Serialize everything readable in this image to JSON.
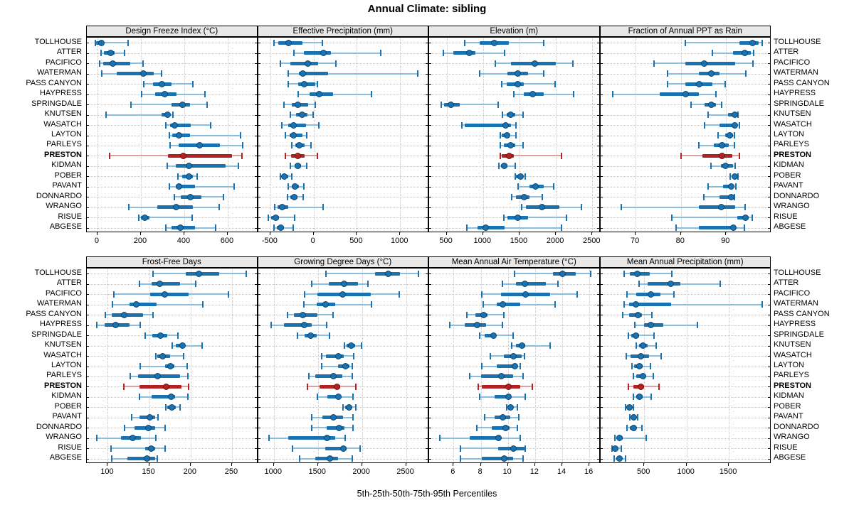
{
  "title": "Annual Climate: sibling",
  "caption": "5th-25th-50th-75th-95th Percentiles",
  "highlight_station": "PRESTON",
  "colors": {
    "series": "#1b72b0",
    "series_light": "#8cbedf",
    "series_dot_edge": "#0d456e",
    "highlight": "#b22222",
    "highlight_light": "#dfa09f",
    "highlight_dot_edge": "#701312",
    "header_bg": "#e8e8e8",
    "grid": "#c6c6c6",
    "border": "#000000"
  },
  "stations": [
    "TOLLHOUSE",
    "ATTER",
    "PACIFICO",
    "WATERMAN",
    "PASS CANYON",
    "HAYPRESS",
    "SPRINGDALE",
    "KNUTSEN",
    "WASATCH",
    "LAYTON",
    "PARLEYS",
    "PRESTON",
    "KIDMAN",
    "POBER",
    "PAVANT",
    "DONNARDO",
    "WRANGO",
    "RISUE",
    "ABGESE"
  ],
  "chart_data": [
    {
      "type": "dotplot_percentiles",
      "title": "Design Freeze Index (°C)",
      "percentile_levels": [
        5,
        25,
        50,
        75,
        95
      ],
      "xlim": [
        -49,
        733
      ],
      "ticks": [
        0,
        200,
        400,
        600
      ],
      "percentiles": {
        "TOLLHOUSE": [
          -10,
          -5,
          15,
          30,
          140
        ],
        "ATTER": [
          15,
          30,
          60,
          80,
          125
        ],
        "PACIFICO": [
          10,
          25,
          70,
          150,
          210
        ],
        "WATERMAN": [
          20,
          90,
          210,
          260,
          295
        ],
        "PASS CANYON": [
          212,
          255,
          295,
          340,
          440
        ],
        "HAYPRESS": [
          205,
          265,
          310,
          365,
          495
        ],
        "SPRINGDALE": [
          155,
          340,
          390,
          425,
          505
        ],
        "KNUTSEN": [
          40,
          295,
          320,
          335,
          348
        ],
        "WASATCH": [
          315,
          335,
          355,
          430,
          520
        ],
        "LAYTON": [
          330,
          345,
          375,
          425,
          660
        ],
        "PARLEYS": [
          335,
          375,
          470,
          565,
          670
        ],
        "PRESTON": [
          55,
          325,
          395,
          620,
          665
        ],
        "KIDMAN": [
          320,
          360,
          420,
          590,
          650
        ],
        "POBER": [
          370,
          390,
          420,
          440,
          460
        ],
        "PAVANT": [
          330,
          360,
          375,
          450,
          630
        ],
        "DONNARDO": [
          355,
          385,
          425,
          480,
          580
        ],
        "WRANGO": [
          145,
          275,
          360,
          440,
          560
        ],
        "RISUE": [
          190,
          200,
          215,
          240,
          435
        ],
        "ABGESE": [
          315,
          340,
          380,
          450,
          545
        ]
      }
    },
    {
      "type": "dotplot_percentiles",
      "title": "Effective Precipitation (mm)",
      "percentile_levels": [
        5,
        25,
        50,
        75,
        95
      ],
      "xlim": [
        -643,
        1319
      ],
      "ticks": [
        -500,
        0,
        500,
        1000
      ],
      "percentiles": {
        "TOLLHOUSE": [
          -460,
          -410,
          -290,
          -130,
          105
        ],
        "ATTER": [
          -230,
          -115,
          110,
          200,
          780
        ],
        "PACIFICO": [
          -380,
          -265,
          -70,
          55,
          255
        ],
        "WATERMAN": [
          -290,
          -170,
          -130,
          170,
          1205
        ],
        "PASS CANYON": [
          -290,
          -175,
          -110,
          20,
          45
        ],
        "HAYPRESS": [
          -175,
          -45,
          57,
          225,
          670
        ],
        "SPRINGDALE": [
          -340,
          -250,
          -183,
          -60,
          16
        ],
        "KNUTSEN": [
          -265,
          -205,
          -136,
          -68,
          -5
        ],
        "WASATCH": [
          -365,
          -290,
          -237,
          -87,
          63
        ],
        "LAYTON": [
          -325,
          -278,
          -237,
          -128,
          -79
        ],
        "PARLEYS": [
          -250,
          -210,
          -169,
          -101,
          -33
        ],
        "PRESTON": [
          -325,
          -260,
          -188,
          -100,
          40
        ],
        "KIDMAN": [
          -265,
          -223,
          -188,
          -142,
          -79
        ],
        "POBER": [
          -380,
          -365,
          -340,
          -290,
          -250
        ],
        "PAVANT": [
          -290,
          -250,
          -223,
          -170,
          -115
        ],
        "DONNARDO": [
          -300,
          -265,
          -229,
          -183,
          -123
        ],
        "WRANGO": [
          -447,
          -414,
          -365,
          -292,
          109
        ],
        "RISUE": [
          -523,
          -488,
          -441,
          -400,
          -223
        ],
        "ABGESE": [
          -460,
          -428,
          -382,
          -341,
          -232
        ]
      }
    },
    {
      "type": "dotplot_percentiles",
      "title": "Elevation (m)",
      "percentile_levels": [
        5,
        25,
        50,
        75,
        95
      ],
      "xlim": [
        260,
        2590
      ],
      "ticks": [
        500,
        1000,
        1500,
        2000,
        2500
      ],
      "percentiles": {
        "TOLLHOUSE": [
          750,
          950,
          1150,
          1350,
          1830
        ],
        "ATTER": [
          460,
          590,
          810,
          900,
          1300
        ],
        "PACIFICO": [
          1170,
          1380,
          1710,
          2000,
          2230
        ],
        "WATERMAN": [
          955,
          1335,
          1470,
          1620,
          1835
        ],
        "PASS CANYON": [
          1260,
          1320,
          1470,
          1560,
          1985
        ],
        "HAYPRESS": [
          1425,
          1560,
          1680,
          1835,
          2240
        ],
        "SPRINGDALE": [
          425,
          465,
          550,
          680,
          1210
        ],
        "KNUTSEN": [
          1270,
          1320,
          1370,
          1440,
          1545
        ],
        "WASATCH": [
          710,
          745,
          1310,
          1380,
          1455
        ],
        "LAYTON": [
          1240,
          1260,
          1320,
          1365,
          1455
        ],
        "PARLEYS": [
          1240,
          1290,
          1370,
          1440,
          1545
        ],
        "PRESTON": [
          1240,
          1260,
          1350,
          1425,
          2075
        ],
        "KIDMAN": [
          1220,
          1245,
          1290,
          1335,
          1445
        ],
        "POBER": [
          1440,
          1455,
          1510,
          1545,
          1580
        ],
        "PAVANT": [
          1485,
          1635,
          1720,
          1835,
          1970
        ],
        "DONNARDO": [
          1395,
          1455,
          1560,
          1635,
          1810
        ],
        "WRANGO": [
          1530,
          1590,
          1800,
          2045,
          2355
        ],
        "RISUE": [
          1290,
          1335,
          1475,
          1620,
          2150
        ],
        "ABGESE": [
          775,
          920,
          1030,
          1300,
          2075
        ]
      }
    },
    {
      "type": "dotplot_percentiles",
      "title": "Fraction of Annual PPT as Rain",
      "percentile_levels": [
        5,
        25,
        50,
        75,
        95
      ],
      "xlim": [
        62.2,
        99.7
      ],
      "ticks": [
        70,
        80,
        90
      ],
      "percentiles": {
        "TOLLHOUSE": [
          81,
          93,
          95.8,
          97.2,
          98
        ],
        "ATTER": [
          87,
          91.5,
          94,
          95.5,
          96.1
        ],
        "PACIFICO": [
          74,
          81,
          85,
          92,
          96
        ],
        "WATERMAN": [
          77,
          84,
          86.7,
          88.5,
          94.3
        ],
        "PASS CANYON": [
          77,
          81,
          84,
          87,
          89.8
        ],
        "HAYPRESS": [
          65,
          75.3,
          81,
          84,
          87.8
        ],
        "SPRINGDALE": [
          82.3,
          85.2,
          86.7,
          87.8,
          89
        ],
        "KNUTSEN": [
          86,
          90.5,
          91.9,
          92.3,
          92.7
        ],
        "WASATCH": [
          85.2,
          88.5,
          91.8,
          92.4,
          93
        ],
        "LAYTON": [
          88.3,
          89.8,
          90.8,
          91.5,
          91.9
        ],
        "PARLEYS": [
          84,
          87.3,
          89,
          90.6,
          91.8
        ],
        "PRESTON": [
          80,
          84.7,
          89,
          91.4,
          93
        ],
        "KIDMAN": [
          86.7,
          88.8,
          89.8,
          91.5,
          92
        ],
        "POBER": [
          90.9,
          91.3,
          91.8,
          92.4,
          92.7
        ],
        "PAVANT": [
          86,
          89.3,
          91,
          91.7,
          92.2
        ],
        "DONNARDO": [
          85,
          88.5,
          91,
          91.5,
          91.9
        ],
        "WRANGO": [
          66.9,
          84,
          88.8,
          92,
          94.2
        ],
        "RISUE": [
          78,
          92.4,
          94.2,
          95,
          95.8
        ],
        "ABGESE": [
          79,
          84,
          91.5,
          92,
          94.1
        ]
      }
    },
    {
      "type": "dotplot_percentiles",
      "title": "Frost-Free Days",
      "percentile_levels": [
        5,
        25,
        50,
        75,
        95
      ],
      "xlim": [
        74.7,
        279.7
      ],
      "ticks": [
        100,
        150,
        200,
        250
      ],
      "percentiles": {
        "TOLLHOUSE": [
          155,
          194,
          210,
          235,
          267
        ],
        "ATTER": [
          138,
          153,
          162,
          187,
          206
        ],
        "PACIFICO": [
          107,
          151,
          168,
          198,
          246
        ],
        "WATERMAN": [
          106,
          126,
          134,
          159,
          215
        ],
        "PASS CANYON": [
          97,
          105,
          119,
          143,
          155
        ],
        "HAYPRESS": [
          87,
          96,
          109,
          126,
          139
        ],
        "SPRINGDALE": [
          145,
          154,
          163,
          172,
          185
        ],
        "KNUTSEN": [
          178,
          182,
          190,
          193,
          214
        ],
        "WASATCH": [
          158,
          160,
          166,
          175,
          192
        ],
        "LAYTON": [
          139,
          169,
          175,
          180,
          196
        ],
        "PARLEYS": [
          127,
          137,
          160,
          187,
          197
        ],
        "PRESTON": [
          119,
          138,
          170,
          189,
          198
        ],
        "KIDMAN": [
          138,
          153,
          176,
          181,
          197
        ],
        "POBER": [
          170,
          172,
          177,
          182,
          187
        ],
        "PAVANT": [
          129,
          138,
          150,
          157,
          161
        ],
        "DONNARDO": [
          120,
          132,
          149,
          157,
          169
        ],
        "WRANGO": [
          87,
          116,
          130,
          140,
          158
        ],
        "RISUE": [
          104,
          145,
          152,
          157,
          169
        ],
        "ABGESE": [
          105,
          124,
          147,
          157,
          160
        ]
      }
    },
    {
      "type": "dotplot_percentiles",
      "title": "Growing Degree Days (°C)",
      "percentile_levels": [
        5,
        25,
        50,
        75,
        95
      ],
      "xlim": [
        820,
        2746
      ],
      "ticks": [
        1000,
        1500,
        2000,
        2500
      ],
      "percentiles": {
        "TOLLHOUSE": [
          1590,
          2148,
          2295,
          2434,
          2640
        ],
        "ATTER": [
          1433,
          1625,
          1793,
          1953,
          2068
        ],
        "PACIFICO": [
          1347,
          1491,
          1774,
          2100,
          2426
        ],
        "WATERMAN": [
          1340,
          1490,
          1580,
          1700,
          2105
        ],
        "PASS CANYON": [
          1152,
          1227,
          1326,
          1491,
          1673
        ],
        "HAYPRESS": [
          973,
          1112,
          1339,
          1432,
          1598
        ],
        "SPRINGDALE": [
          1272,
          1352,
          1414,
          1486,
          1633
        ],
        "KNUTSEN": [
          1801,
          1828,
          1873,
          1926,
          1998
        ],
        "WASATCH": [
          1545,
          1593,
          1732,
          1793,
          1908
        ],
        "LAYTON": [
          1539,
          1732,
          1812,
          1860,
          1886
        ],
        "PARLEYS": [
          1398,
          1473,
          1668,
          1780,
          1886
        ],
        "PRESTON": [
          1379,
          1518,
          1713,
          1753,
          1934
        ],
        "KIDMAN": [
          1491,
          1606,
          1726,
          1753,
          1900
        ],
        "POBER": [
          1785,
          1812,
          1846,
          1886,
          1934
        ],
        "PAVANT": [
          1433,
          1553,
          1673,
          1785,
          1900
        ],
        "DONNARDO": [
          1427,
          1598,
          1740,
          1801,
          1895
        ],
        "WRANGO": [
          947,
          1166,
          1598,
          1694,
          1812
        ],
        "RISUE": [
          1214,
          1587,
          1785,
          1828,
          1980
        ],
        "ABGESE": [
          1294,
          1473,
          1633,
          1726,
          1886
        ]
      }
    },
    {
      "type": "dotplot_percentiles",
      "title": "Mean Annual Air Temperature (°C)",
      "percentile_levels": [
        5,
        25,
        50,
        75,
        95
      ],
      "xlim": [
        4.2,
        16.7
      ],
      "ticks": [
        6,
        8,
        10,
        12,
        14,
        16
      ],
      "percentiles": {
        "TOLLHOUSE": [
          10.5,
          13.3,
          14,
          15,
          16.1
        ],
        "ATTER": [
          9.6,
          10.6,
          11.2,
          12.8,
          13.7
        ],
        "PACIFICO": [
          8.1,
          9.5,
          11.3,
          13.1,
          15.1
        ],
        "WATERMAN": [
          8.2,
          9.2,
          9.6,
          10.9,
          13.5
        ],
        "PASS CANYON": [
          7.0,
          7.6,
          8.2,
          8.5,
          9.7
        ],
        "HAYPRESS": [
          5.7,
          6.8,
          7.7,
          8.4,
          9.6
        ],
        "SPRINGDALE": [
          7.9,
          8.3,
          8.9,
          9.1,
          10.4
        ],
        "KNUTSEN": [
          10.3,
          10.6,
          11.0,
          11.3,
          13.1
        ],
        "WASATCH": [
          8.7,
          9.7,
          10.4,
          11.0,
          11.2
        ],
        "LAYTON": [
          8.1,
          9.2,
          10.5,
          10.7,
          10.9
        ],
        "PARLEYS": [
          7.2,
          8.0,
          9.5,
          10.4,
          11.1
        ],
        "PRESTON": [
          7.8,
          8.1,
          10.0,
          10.9,
          11.8
        ],
        "KIDMAN": [
          7.9,
          9.0,
          10.0,
          10.2,
          11.3
        ],
        "POBER": [
          9.9,
          10.1,
          10.2,
          10.4,
          10.7
        ],
        "PAVANT": [
          8.3,
          9.0,
          9.6,
          10.2,
          10.8
        ],
        "DONNARDO": [
          7.7,
          8.8,
          9.8,
          10.1,
          10.7
        ],
        "WRANGO": [
          5.0,
          7.2,
          9.3,
          9.5,
          10.9
        ],
        "RISUE": [
          6.5,
          9.3,
          10.4,
          11.2,
          11.3
        ],
        "ABGESE": [
          6.5,
          8.1,
          9.7,
          10.4,
          11.1
        ]
      }
    },
    {
      "type": "dotplot_percentiles",
      "title": "Mean Annual Precipitation (mm)",
      "percentile_levels": [
        5,
        25,
        50,
        75,
        95
      ],
      "xlim": [
        -18,
        1986
      ],
      "ticks": [
        500,
        1000,
        1500
      ],
      "percentiles": {
        "TOLLHOUSE": [
          264,
          333,
          417,
          564,
          828
        ],
        "ATTER": [
          439,
          542,
          806,
          931,
          1398
        ],
        "PACIFICO": [
          297,
          403,
          578,
          695,
          853
        ],
        "WATERMAN": [
          264,
          319,
          397,
          820,
          1890
        ],
        "PASS CANYON": [
          250,
          319,
          425,
          472,
          592
        ],
        "HAYPRESS": [
          389,
          500,
          578,
          722,
          1131
        ],
        "SPRINGDALE": [
          314,
          347,
          397,
          444,
          620
        ],
        "KNUTSEN": [
          403,
          439,
          486,
          542,
          639
        ],
        "WASATCH": [
          286,
          342,
          458,
          556,
          703
        ],
        "LAYTON": [
          356,
          383,
          439,
          486,
          578
        ],
        "PARLEYS": [
          369,
          403,
          481,
          514,
          611
        ],
        "PRESTON": [
          314,
          375,
          453,
          500,
          675
        ],
        "KIDMAN": [
          375,
          403,
          444,
          486,
          583
        ],
        "POBER": [
          278,
          300,
          319,
          347,
          375
        ],
        "PAVANT": [
          328,
          347,
          375,
          397,
          425
        ],
        "DONNARDO": [
          300,
          333,
          369,
          403,
          472
        ],
        "WRANGO": [
          158,
          180,
          208,
          250,
          522
        ],
        "RISUE": [
          119,
          133,
          158,
          194,
          230
        ],
        "ABGESE": [
          147,
          175,
          203,
          242,
          278
        ]
      }
    }
  ]
}
